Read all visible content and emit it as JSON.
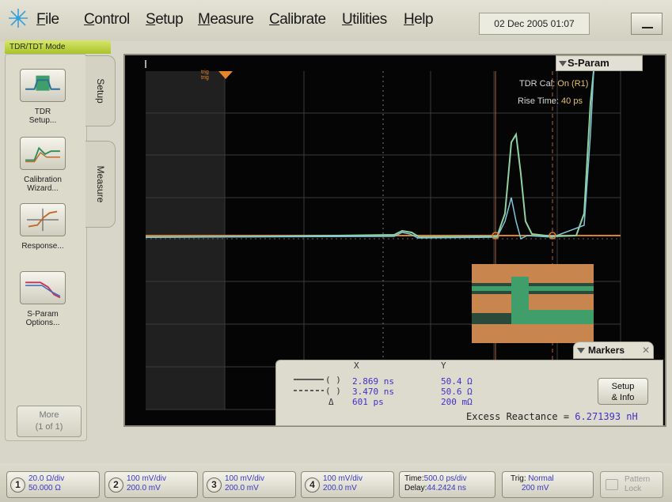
{
  "menu": {
    "items": [
      "File",
      "Control",
      "Setup",
      "Measure",
      "Calibrate",
      "Utilities",
      "Help"
    ],
    "datetime": "02 Dec 2005  01:07"
  },
  "mode_tab": "TDR/TDT Mode",
  "left_panel": {
    "buttons": [
      {
        "label": "TDR\nSetup..."
      },
      {
        "label": "Calibration\nWizard..."
      },
      {
        "label": "Response..."
      },
      {
        "label": "S-Param\nOptions..."
      }
    ],
    "more": "More\n(1 of 1)",
    "tabs": [
      "Setup",
      "Measure"
    ]
  },
  "scope": {
    "trig_label": "trig\ntrig",
    "sparam_label": "S-Param",
    "tdr_cal_label": "TDR Cal:",
    "tdr_cal_value": "On (R1)",
    "rise_time_label": "Rise Time:",
    "rise_time_value": "40 ps"
  },
  "markers": {
    "tab_label": "Markers",
    "x_header": "X",
    "y_header": "Y",
    "rows": [
      {
        "x": "2.869 ns",
        "y": "50.4 Ω"
      },
      {
        "x": "3.470 ns",
        "y": "50.6 Ω"
      }
    ],
    "delta_symbol": "Δ",
    "delta_x": "601 ps",
    "delta_y": "200 mΩ",
    "setup_info": "Setup\n& Info",
    "excess_label": "Excess Reactance =",
    "excess_value": "6.271393 nH"
  },
  "bottom": {
    "channels": [
      {
        "num": "1",
        "line1": "20.0 Ω/div",
        "line2": "50.000 Ω"
      },
      {
        "num": "2",
        "line1": "100 mV/div",
        "line2": "200.0 mV"
      },
      {
        "num": "3",
        "line1": "100 mV/div",
        "line2": "200.0 mV"
      },
      {
        "num": "4",
        "line1": "100 mV/div",
        "line2": "200.0 mV"
      }
    ],
    "timebase": {
      "time_label": "Time:",
      "time_value": "500.0 ps/div",
      "delay_label": "Delay:",
      "delay_value": "44.2424 ns"
    },
    "trigger": {
      "label": "Trig:",
      "mode": "Normal",
      "level": "200 mV"
    },
    "pattern_lock": "Pattern\nLock"
  },
  "colors": {
    "screen_bg": "#050505",
    "trace_orange": "#d9822b",
    "trace_green": "#8fd1a0",
    "trace_blue": "#7fc6d8",
    "marker_text": "#4030c8",
    "mode_tab": "#b6cc3a"
  }
}
